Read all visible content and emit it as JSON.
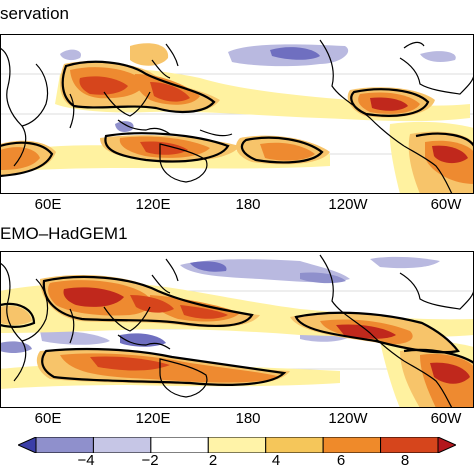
{
  "panels": [
    {
      "title": "servation",
      "lon_ticks": [
        "60E",
        "120E",
        "180",
        "120W",
        "60W"
      ]
    },
    {
      "title": "EMO–HadGEM1",
      "lon_ticks": [
        "60E",
        "120E",
        "180",
        "120W",
        "60W"
      ]
    }
  ],
  "colorbar": {
    "labels": [
      "−4",
      "−2",
      "2",
      "4",
      "6",
      "8"
    ],
    "colors": [
      "#3b3ea8",
      "#8f90cc",
      "#c6c6e6",
      "#ffffff",
      "#fff3a8",
      "#f5c65a",
      "#ef8a2a",
      "#d6451c",
      "#b3161c"
    ]
  },
  "colors": {
    "strong_red": "#c0281c",
    "orange": "#ee8a30",
    "light_orange": "#f7c46a",
    "yellow": "#fff2a0",
    "blue": "#6f6fc0",
    "light_blue": "#b9b9e0"
  }
}
